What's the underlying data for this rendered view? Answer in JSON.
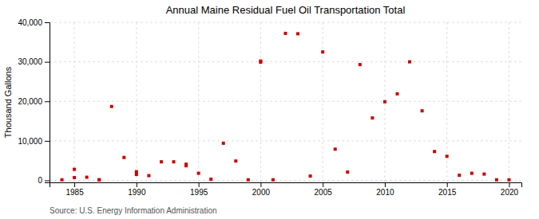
{
  "chart_data": {
    "type": "scatter",
    "title": "Annual Maine Residual Fuel Oil Transportation Total",
    "ylabel": "Thousand Gallons",
    "source": "Source: U.S. Energy Information Administration",
    "color": "#cc0000",
    "marker": "square",
    "grid": true,
    "xlim": [
      1983,
      2021
    ],
    "ylim": [
      -500,
      40000
    ],
    "xticks": [
      1985,
      1990,
      1995,
      2000,
      2005,
      2010,
      2015,
      2020
    ],
    "yticks": [
      0,
      {
        "value": 10000,
        "label": "10,000"
      },
      {
        "value": 20000,
        "label": "20,000"
      },
      {
        "value": 30000,
        "label": "30,000"
      },
      {
        "value": 40000,
        "label": "40,000"
      }
    ],
    "x": [
      1984,
      1985,
      1985,
      1986,
      1987,
      1987,
      1988,
      1989,
      1990,
      1990,
      1991,
      1992,
      1993,
      1994,
      1994,
      1995,
      1996,
      1997,
      1998,
      1999,
      2000,
      2000,
      2001,
      2002,
      2003,
      2004,
      2005,
      2006,
      2007,
      2008,
      2009,
      2010,
      2011,
      2012,
      2013,
      2014,
      2015,
      2016,
      2017,
      2018,
      2019,
      2020
    ],
    "values": [
      150,
      700,
      2800,
      800,
      150,
      150,
      18700,
      5800,
      2200,
      1500,
      1200,
      4700,
      4700,
      4100,
      3700,
      1800,
      300,
      9400,
      4900,
      150,
      30200,
      29900,
      150,
      37200,
      37100,
      1100,
      32500,
      7900,
      2100,
      29300,
      15800,
      19900,
      21900,
      30000,
      17600,
      7300,
      6100,
      1300,
      1800,
      1600,
      150,
      150
    ]
  }
}
